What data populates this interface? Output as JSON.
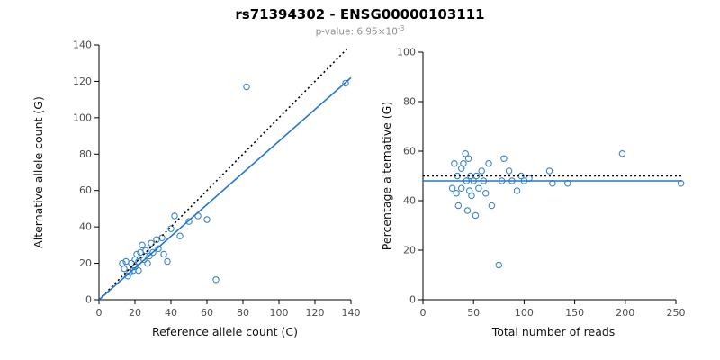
{
  "header": {
    "title": "rs71394302 - ENSG00000103111",
    "subtitle_base": "p-value: 6.95×10",
    "subtitle_exp": "-3"
  },
  "colors": {
    "point_blue": "#3d86c6",
    "fit_blue": "#2176d2",
    "identity_black": "#000000"
  },
  "chart_data": [
    {
      "type": "scatter",
      "name": "allele-counts",
      "xlabel": "Reference allele count (C)",
      "ylabel": "Alternative allele count (G)",
      "xlim": [
        0,
        140
      ],
      "ylim": [
        0,
        140
      ],
      "xticks": [
        0,
        20,
        40,
        60,
        80,
        100,
        120,
        140
      ],
      "yticks": [
        0,
        20,
        40,
        60,
        80,
        100,
        120,
        140
      ],
      "grid": false,
      "legend": "none",
      "point_color": "#3d86c6",
      "points": [
        [
          13,
          20
        ],
        [
          14,
          17
        ],
        [
          15,
          21
        ],
        [
          16,
          13
        ],
        [
          17,
          15
        ],
        [
          18,
          20
        ],
        [
          19,
          16
        ],
        [
          20,
          22
        ],
        [
          20,
          18
        ],
        [
          21,
          25
        ],
        [
          22,
          21
        ],
        [
          22,
          16
        ],
        [
          23,
          26
        ],
        [
          24,
          30
        ],
        [
          25,
          22
        ],
        [
          26,
          27
        ],
        [
          27,
          20
        ],
        [
          28,
          24
        ],
        [
          29,
          31
        ],
        [
          30,
          26
        ],
        [
          32,
          33
        ],
        [
          33,
          28
        ],
        [
          35,
          34
        ],
        [
          36,
          25
        ],
        [
          38,
          21
        ],
        [
          40,
          39
        ],
        [
          42,
          46
        ],
        [
          45,
          35
        ],
        [
          50,
          43
        ],
        [
          55,
          46
        ],
        [
          60,
          44
        ],
        [
          65,
          11
        ],
        [
          82,
          117
        ],
        [
          137,
          119
        ]
      ],
      "lines": [
        {
          "name": "identity",
          "style": "dotted",
          "color": "#000000",
          "x1": 0,
          "y1": 0,
          "x2": 138,
          "y2": 138
        },
        {
          "name": "fit",
          "style": "solid",
          "color": "#2176d2",
          "x1": 0,
          "y1": 0,
          "x2": 140,
          "y2": 122
        }
      ]
    },
    {
      "type": "scatter",
      "name": "percentage-vs-reads",
      "xlabel": "Total number of reads",
      "ylabel": "Percentage alternative (G)",
      "xlim": [
        0,
        258
      ],
      "ylim": [
        0,
        100
      ],
      "xticks": [
        0,
        50,
        100,
        150,
        200,
        250
      ],
      "yticks": [
        0,
        20,
        40,
        60,
        80,
        100
      ],
      "grid": false,
      "legend": "none",
      "point_color": "#3d86c6",
      "points": [
        [
          29,
          45
        ],
        [
          31,
          55
        ],
        [
          33,
          43
        ],
        [
          34,
          50
        ],
        [
          35,
          38
        ],
        [
          38,
          53
        ],
        [
          38,
          45
        ],
        [
          40,
          55
        ],
        [
          42,
          59
        ],
        [
          43,
          48
        ],
        [
          44,
          36
        ],
        [
          45,
          57
        ],
        [
          46,
          44
        ],
        [
          47,
          50
        ],
        [
          48,
          42
        ],
        [
          50,
          48
        ],
        [
          52,
          34
        ],
        [
          53,
          50
        ],
        [
          55,
          45
        ],
        [
          58,
          52
        ],
        [
          60,
          48
        ],
        [
          62,
          43
        ],
        [
          65,
          55
        ],
        [
          68,
          38
        ],
        [
          75,
          14
        ],
        [
          78,
          48
        ],
        [
          80,
          57
        ],
        [
          85,
          52
        ],
        [
          88,
          48
        ],
        [
          93,
          44
        ],
        [
          97,
          50
        ],
        [
          100,
          48
        ],
        [
          105,
          49
        ],
        [
          125,
          52
        ],
        [
          128,
          47
        ],
        [
          143,
          47
        ],
        [
          197,
          59
        ],
        [
          255,
          47
        ]
      ],
      "lines": [
        {
          "name": "expected",
          "style": "dotted",
          "color": "#000000",
          "x1": 0,
          "y1": 50,
          "x2": 256,
          "y2": 50
        },
        {
          "name": "fit",
          "style": "solid",
          "color": "#2176d2",
          "x1": 0,
          "y1": 48,
          "x2": 256,
          "y2": 48
        }
      ]
    }
  ]
}
